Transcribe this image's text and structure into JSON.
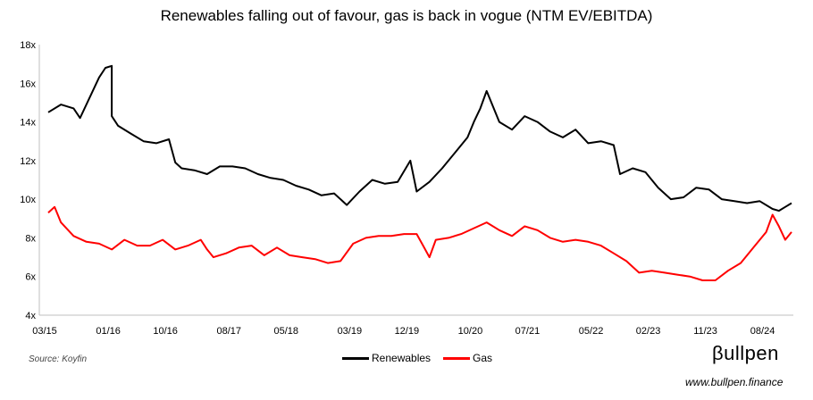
{
  "chart_data": {
    "type": "line",
    "title": "Renewables falling out of favour, gas is back in vogue (NTM EV/EBITDA)",
    "x_tick_labels": [
      "03/15",
      "01/16",
      "10/16",
      "08/17",
      "05/18",
      "03/19",
      "12/19",
      "10/20",
      "07/21",
      "05/22",
      "02/23",
      "11/23",
      "08/24"
    ],
    "x_range": [
      "2015-03",
      "2024-12"
    ],
    "y_tick_labels": [
      "4x",
      "6x",
      "8x",
      "10x",
      "12x",
      "14x",
      "16x",
      "18x"
    ],
    "ylim": [
      4,
      18
    ],
    "grid": false,
    "legend_position": "bottom-center",
    "series": [
      {
        "name": "Renewables",
        "color": "#000000",
        "points": [
          [
            "2015-03",
            14.5
          ],
          [
            "2015-05",
            14.9
          ],
          [
            "2015-07",
            14.7
          ],
          [
            "2015-08",
            14.2
          ],
          [
            "2015-10",
            15.6
          ],
          [
            "2015-11",
            16.3
          ],
          [
            "2015-12",
            16.8
          ],
          [
            "2016-01",
            16.9
          ],
          [
            "2016-01",
            14.3
          ],
          [
            "2016-02",
            13.8
          ],
          [
            "2016-04",
            13.4
          ],
          [
            "2016-06",
            13.0
          ],
          [
            "2016-08",
            12.9
          ],
          [
            "2016-10",
            13.1
          ],
          [
            "2016-11",
            11.9
          ],
          [
            "2016-12",
            11.6
          ],
          [
            "2017-02",
            11.5
          ],
          [
            "2017-04",
            11.3
          ],
          [
            "2017-06",
            11.7
          ],
          [
            "2017-08",
            11.7
          ],
          [
            "2017-10",
            11.6
          ],
          [
            "2017-12",
            11.3
          ],
          [
            "2018-02",
            11.1
          ],
          [
            "2018-04",
            11.0
          ],
          [
            "2018-06",
            10.7
          ],
          [
            "2018-08",
            10.5
          ],
          [
            "2018-10",
            10.2
          ],
          [
            "2018-12",
            10.3
          ],
          [
            "2019-02",
            9.7
          ],
          [
            "2019-04",
            10.4
          ],
          [
            "2019-06",
            11.0
          ],
          [
            "2019-08",
            10.8
          ],
          [
            "2019-10",
            10.9
          ],
          [
            "2019-12",
            12.0
          ],
          [
            "2020-01",
            10.4
          ],
          [
            "2020-03",
            10.9
          ],
          [
            "2020-05",
            11.6
          ],
          [
            "2020-07",
            12.4
          ],
          [
            "2020-09",
            13.2
          ],
          [
            "2020-10",
            14.0
          ],
          [
            "2020-11",
            14.7
          ],
          [
            "2020-12",
            15.6
          ],
          [
            "2021-02",
            14.0
          ],
          [
            "2021-04",
            13.6
          ],
          [
            "2021-06",
            14.3
          ],
          [
            "2021-08",
            14.0
          ],
          [
            "2021-10",
            13.5
          ],
          [
            "2021-12",
            13.2
          ],
          [
            "2022-02",
            13.6
          ],
          [
            "2022-04",
            12.9
          ],
          [
            "2022-06",
            13.0
          ],
          [
            "2022-08",
            12.8
          ],
          [
            "2022-09",
            11.3
          ],
          [
            "2022-11",
            11.6
          ],
          [
            "2023-01",
            11.4
          ],
          [
            "2023-03",
            10.6
          ],
          [
            "2023-05",
            10.0
          ],
          [
            "2023-07",
            10.1
          ],
          [
            "2023-09",
            10.6
          ],
          [
            "2023-11",
            10.5
          ],
          [
            "2024-01",
            10.0
          ],
          [
            "2024-03",
            9.9
          ],
          [
            "2024-05",
            9.8
          ],
          [
            "2024-07",
            9.9
          ],
          [
            "2024-09",
            9.5
          ],
          [
            "2024-10",
            9.4
          ],
          [
            "2024-11",
            9.6
          ],
          [
            "2024-12",
            9.8
          ]
        ]
      },
      {
        "name": "Gas",
        "color": "#ff0000",
        "points": [
          [
            "2015-03",
            9.3
          ],
          [
            "2015-04",
            9.6
          ],
          [
            "2015-05",
            8.8
          ],
          [
            "2015-07",
            8.1
          ],
          [
            "2015-09",
            7.8
          ],
          [
            "2015-11",
            7.7
          ],
          [
            "2016-01",
            7.4
          ],
          [
            "2016-03",
            7.9
          ],
          [
            "2016-05",
            7.6
          ],
          [
            "2016-07",
            7.6
          ],
          [
            "2016-09",
            7.9
          ],
          [
            "2016-11",
            7.4
          ],
          [
            "2017-01",
            7.6
          ],
          [
            "2017-03",
            7.9
          ],
          [
            "2017-04",
            7.4
          ],
          [
            "2017-05",
            7.0
          ],
          [
            "2017-07",
            7.2
          ],
          [
            "2017-09",
            7.5
          ],
          [
            "2017-11",
            7.6
          ],
          [
            "2018-01",
            7.1
          ],
          [
            "2018-03",
            7.5
          ],
          [
            "2018-05",
            7.1
          ],
          [
            "2018-07",
            7.0
          ],
          [
            "2018-09",
            6.9
          ],
          [
            "2018-11",
            6.7
          ],
          [
            "2019-01",
            6.8
          ],
          [
            "2019-03",
            7.7
          ],
          [
            "2019-05",
            8.0
          ],
          [
            "2019-07",
            8.1
          ],
          [
            "2019-09",
            8.1
          ],
          [
            "2019-11",
            8.2
          ],
          [
            "2020-01",
            8.2
          ],
          [
            "2020-02",
            7.6
          ],
          [
            "2020-03",
            7.0
          ],
          [
            "2020-04",
            7.9
          ],
          [
            "2020-06",
            8.0
          ],
          [
            "2020-08",
            8.2
          ],
          [
            "2020-10",
            8.5
          ],
          [
            "2020-12",
            8.8
          ],
          [
            "2021-02",
            8.4
          ],
          [
            "2021-04",
            8.1
          ],
          [
            "2021-06",
            8.6
          ],
          [
            "2021-08",
            8.4
          ],
          [
            "2021-10",
            8.0
          ],
          [
            "2021-12",
            7.8
          ],
          [
            "2022-02",
            7.9
          ],
          [
            "2022-04",
            7.8
          ],
          [
            "2022-06",
            7.6
          ],
          [
            "2022-08",
            7.2
          ],
          [
            "2022-10",
            6.8
          ],
          [
            "2022-12",
            6.2
          ],
          [
            "2023-02",
            6.3
          ],
          [
            "2023-04",
            6.2
          ],
          [
            "2023-06",
            6.1
          ],
          [
            "2023-08",
            6.0
          ],
          [
            "2023-10",
            5.8
          ],
          [
            "2023-12",
            5.8
          ],
          [
            "2024-02",
            6.3
          ],
          [
            "2024-04",
            6.7
          ],
          [
            "2024-06",
            7.5
          ],
          [
            "2024-08",
            8.3
          ],
          [
            "2024-09",
            9.2
          ],
          [
            "2024-10",
            8.6
          ],
          [
            "2024-11",
            7.9
          ],
          [
            "2024-12",
            8.3
          ]
        ]
      }
    ]
  },
  "source_note": "Source: Koyfin",
  "brand": {
    "logo_text": "βullpen",
    "url": "www.bullpen.finance"
  }
}
